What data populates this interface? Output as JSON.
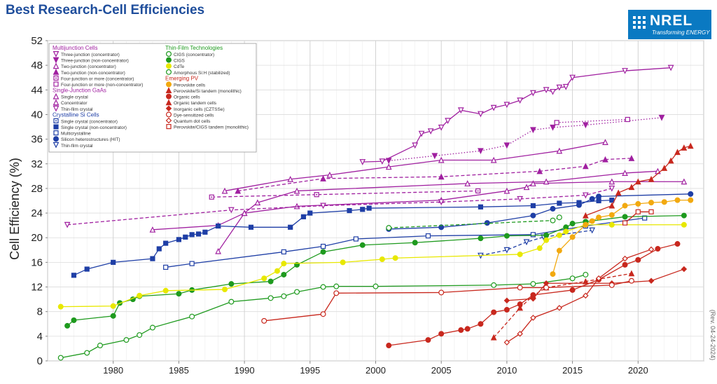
{
  "page": {
    "title": "Best Research-Cell Efficiencies",
    "logo_text": "NREL",
    "logo_tagline": "Transforming ENERGY",
    "revision": "(Rev. 04-24-2024)"
  },
  "chart_data": {
    "type": "line",
    "title": "Best Research-Cell Efficiencies",
    "xlabel": "",
    "ylabel": "Cell Efficiency (%)",
    "xlim": [
      1975,
      2025
    ],
    "ylim": [
      0,
      52
    ],
    "x_ticks": [
      1980,
      1985,
      1990,
      1995,
      2000,
      2005,
      2010,
      2015,
      2020
    ],
    "y_ticks": [
      0,
      4,
      8,
      12,
      16,
      20,
      24,
      28,
      32,
      36,
      40,
      44,
      48,
      52
    ],
    "grid": true,
    "legend_position": "top-left",
    "legend_groups": [
      {
        "title": "Multijunction Cells",
        "color": "#a020a0",
        "items": [
          {
            "label": "Three-junction (concentrator)",
            "color": "#a020a0",
            "marker": "tri-down-open"
          },
          {
            "label": "Three-junction (non-concentrator)",
            "color": "#a020a0",
            "marker": "tri-down"
          },
          {
            "label": "Two-junction (concentrator)",
            "color": "#a020a0",
            "marker": "tri-up-open"
          },
          {
            "label": "Two-junction (non-concentrator)",
            "color": "#a020a0",
            "marker": "tri-up"
          },
          {
            "label": "Four-junction or more (concentrator)",
            "color": "#a020a0",
            "marker": "square-dot"
          },
          {
            "label": "Four-junction or more (non-concentrator)",
            "color": "#a020a0",
            "marker": "square-open"
          }
        ]
      },
      {
        "title": "Single-Junction GaAs",
        "color": "#a020a0",
        "items": [
          {
            "label": "Single crystal",
            "color": "#a020a0",
            "marker": "tri-up-open"
          },
          {
            "label": "Concentrator",
            "color": "#a020a0",
            "marker": "tri-up-open"
          },
          {
            "label": "Thin-film crystal",
            "color": "#a020a0",
            "marker": "tri-down-open"
          }
        ]
      },
      {
        "title": "Crystalline Si Cells",
        "color": "#1f3fa6",
        "items": [
          {
            "label": "Single crystal (concentrator)",
            "color": "#1f3fa6",
            "marker": "square-dot"
          },
          {
            "label": "Single crystal (non-concentrator)",
            "color": "#1f3fa6",
            "marker": "square"
          },
          {
            "label": "Multicrystalline",
            "color": "#1f3fa6",
            "marker": "square-open"
          },
          {
            "label": "Silicon heterostructures (HIT)",
            "color": "#1f3fa6",
            "marker": "circle"
          },
          {
            "label": "Thin-film crystal",
            "color": "#1f3fa6",
            "marker": "tri-down-open"
          }
        ]
      },
      {
        "title": "Thin-Film Technologies",
        "color": "#1e9a1e",
        "items": [
          {
            "label": "CIGS (concentrator)",
            "color": "#1e9a1e",
            "marker": "circle-open"
          },
          {
            "label": "CIGS",
            "color": "#1e9a1e",
            "marker": "circle"
          },
          {
            "label": "CdTe",
            "color": "#e8e800",
            "marker": "circle"
          },
          {
            "label": "Amorphous Si:H (stabilized)",
            "color": "#1e9a1e",
            "marker": "circle-open"
          }
        ]
      },
      {
        "title": "Emerging PV",
        "color": "#c8281e",
        "items": [
          {
            "label": "Perovskite cells",
            "color": "#f2a90f",
            "marker": "circle"
          },
          {
            "label": "Perovskite/Si tandem (monolithic)",
            "color": "#c8281e",
            "marker": "tri-up"
          },
          {
            "label": "Organic cells",
            "color": "#c8281e",
            "marker": "circle"
          },
          {
            "label": "Organic tandem cells",
            "color": "#c8281e",
            "marker": "tri-up"
          },
          {
            "label": "Inorganic cells (CZTSSe)",
            "color": "#c8281e",
            "marker": "diamond"
          },
          {
            "label": "Dye-sensitized cells",
            "color": "#c8281e",
            "marker": "circle-open"
          },
          {
            "label": "Quantum dot cells",
            "color": "#c8281e",
            "marker": "diamond-open"
          },
          {
            "label": "Perovskite/CIGS tandem (monolithic)",
            "color": "#c8281e",
            "marker": "square-open"
          }
        ]
      }
    ],
    "series": [
      {
        "name": "Three-junction (concentrator)",
        "color": "#a020a0",
        "dash": "solid",
        "marker": "tri-down-open",
        "x": [
          1999,
          2000.5,
          2003,
          2003.5,
          2004.2,
          2005,
          2005.5,
          2006.5,
          2008,
          2009,
          2010,
          2011,
          2012,
          2013,
          2013.5,
          2014,
          2014.5,
          2015,
          2019,
          2022.5
        ],
        "y": [
          32.3,
          32.4,
          35,
          36.9,
          37.3,
          37.9,
          39,
          40.7,
          40.1,
          41.1,
          41.6,
          42.3,
          43.5,
          44,
          43.7,
          44.4,
          44.5,
          46,
          47.1,
          47.6
        ]
      },
      {
        "name": "Three-junction (non-concentrator)",
        "color": "#a020a0",
        "dash": "dotted",
        "marker": "tri-down",
        "x": [
          2001,
          2004.5,
          2008,
          2010,
          2012,
          2013.5,
          2016,
          2021.8
        ],
        "y": [
          32.5,
          33.3,
          34.1,
          35,
          37.5,
          37.9,
          38.3,
          39.5
        ]
      },
      {
        "name": "Two-junction (concentrator)",
        "color": "#a020a0",
        "dash": "solid",
        "marker": "tri-up-open",
        "x": [
          1988.5,
          1993.5,
          1996.5,
          2001,
          2005,
          2009,
          2014,
          2017.5
        ],
        "y": [
          27.6,
          29.5,
          30.2,
          31.5,
          32.6,
          32.6,
          34.1,
          35.5
        ]
      },
      {
        "name": "Two-junction (non-concentrator)",
        "color": "#a020a0",
        "dash": "dashed",
        "marker": "tri-up",
        "x": [
          1989.5,
          1996,
          2005,
          2012.5,
          2016,
          2017.5,
          2019.5
        ],
        "y": [
          27.6,
          29.6,
          29.9,
          30.8,
          31.6,
          32.7,
          32.9
        ]
      },
      {
        "name": "Single crystal",
        "color": "#a020a0",
        "dash": "solid",
        "marker": "tri-up-open",
        "x": [
          1983,
          1988,
          1990,
          1994,
          2005,
          2010,
          2011.5,
          2012,
          2018,
          2023.5
        ],
        "y": [
          21.3,
          22,
          24,
          25.1,
          26.1,
          27.6,
          28.2,
          28.8,
          29.1,
          29.1
        ]
      },
      {
        "name": "Concentrator",
        "color": "#a020a0",
        "dash": "solid",
        "marker": "tri-up-open",
        "x": [
          1988,
          1990,
          1991,
          1994,
          2007,
          2013,
          2019,
          2021.5
        ],
        "y": [
          17.8,
          24,
          25.7,
          27.6,
          28.8,
          29.1,
          30.5,
          30.8
        ]
      },
      {
        "name": "Thin-film crystal",
        "color": "#a020a0",
        "dash": "dashed",
        "marker": "tri-down-open",
        "x": [
          1976.5,
          1989,
          1996,
          2005,
          2011,
          2016,
          2018
        ],
        "y": [
          22.1,
          24.5,
          25.2,
          25.8,
          26.3,
          26.9,
          28
        ]
      },
      {
        "name": "Four-junction or more (concentrator)",
        "color": "#a020a0",
        "dash": "dashed",
        "marker": "square-dot",
        "x": [
          1987.5,
          1995.5,
          2007.8
        ],
        "y": [
          26.6,
          27,
          27.6
        ]
      },
      {
        "name": "Four-junction or more (non-concentrator)",
        "color": "#a020a0",
        "dash": "dotted",
        "marker": "square-open",
        "x": [
          2013.8,
          2019.2
        ],
        "y": [
          38.7,
          39.2
        ]
      },
      {
        "name": "Single crystal (non-concentrator)",
        "color": "#1f3fa6",
        "dash": "solid",
        "marker": "square",
        "x": [
          1977,
          1978,
          1980,
          1983,
          1983.5,
          1984,
          1985,
          1985.5,
          1986,
          1986.5,
          1987,
          1988,
          1990.5,
          1993.5,
          1994.5,
          1995,
          1998,
          1999,
          1999.5,
          2008,
          2012,
          2014,
          2015.5,
          2017,
          2018
        ],
        "y": [
          13.9,
          14.9,
          16,
          16.6,
          18.2,
          19.1,
          19.7,
          20.1,
          20.5,
          20.6,
          20.9,
          21.9,
          21.7,
          21.7,
          23.4,
          24,
          24.4,
          24.6,
          24.8,
          25,
          25.2,
          25.6,
          25.7,
          26,
          26.1
        ]
      },
      {
        "name": "Silicon heterostructures (HIT)",
        "color": "#1f3fa6",
        "dash": "solid",
        "marker": "circle",
        "x": [
          2001,
          2005,
          2008.5,
          2012,
          2013.5,
          2015.5,
          2016.5,
          2017,
          2024
        ],
        "y": [
          21.4,
          21.7,
          22.4,
          23.6,
          24.7,
          25.3,
          26.3,
          26.7,
          27.1
        ]
      },
      {
        "name": "Multicrystalline",
        "color": "#1f3fa6",
        "dash": "solid",
        "marker": "square-open",
        "x": [
          1984,
          1986,
          1993,
          1996,
          1998.5,
          2004,
          2012,
          2016,
          2020.5
        ],
        "y": [
          15.2,
          15.8,
          17.7,
          18.6,
          19.8,
          20.3,
          20.5,
          21.9,
          23.2
        ]
      },
      {
        "name": "Thin-film crystal (Si)",
        "color": "#1f3fa6",
        "dash": "dashed",
        "marker": "tri-down-open",
        "x": [
          2008,
          2010,
          2011.5,
          2012.8,
          2016.5
        ],
        "y": [
          17.1,
          18,
          19.3,
          20.1,
          21.2
        ]
      },
      {
        "name": "CIGS (concentrator)",
        "color": "#1e9a1e",
        "dash": "dashed",
        "marker": "circle-open",
        "x": [
          2001,
          2013.5,
          2014
        ],
        "y": [
          21.6,
          22.8,
          23.3
        ]
      },
      {
        "name": "CIGS",
        "color": "#1e9a1e",
        "dash": "solid",
        "marker": "circle",
        "x": [
          1976.5,
          1977,
          1980,
          1980.5,
          1981.5,
          1982,
          1985,
          1986,
          1989,
          1992,
          1993,
          1994,
          1996,
          1999,
          2003,
          2008,
          2010,
          2013,
          2014.5,
          2015,
          2016,
          2019,
          2023.5
        ],
        "y": [
          5.7,
          6.6,
          7.3,
          9.4,
          10,
          10.5,
          10.9,
          11.5,
          12.5,
          12.9,
          14,
          15.6,
          17.7,
          18.8,
          19.2,
          19.9,
          20.3,
          20.4,
          21.7,
          22.3,
          22.6,
          23.4,
          23.6
        ]
      },
      {
        "name": "CdTe",
        "color": "#e8e800",
        "dash": "solid",
        "marker": "circle",
        "x": [
          1976,
          1980,
          1982,
          1984,
          1988.5,
          1991.5,
          1992.5,
          1993,
          1997.5,
          2000.5,
          2001.5,
          2011,
          2012.5,
          2013,
          2014,
          2014.5,
          2016,
          2018,
          2023.5
        ],
        "y": [
          8.8,
          8.9,
          10.6,
          11.4,
          11.6,
          13.4,
          14.6,
          15.8,
          16,
          16.5,
          16.7,
          17.3,
          18.3,
          19.6,
          20.4,
          21,
          22.1,
          22.1,
          22.1
        ]
      },
      {
        "name": "Amorphous Si:H (stabilized)",
        "color": "#1e9a1e",
        "dash": "solid",
        "marker": "circle-open",
        "x": [
          1976,
          1978,
          1979,
          1981,
          1982,
          1983,
          1986,
          1989,
          1992,
          1993,
          1994,
          1996,
          1997,
          2000,
          2009,
          2012,
          2015,
          2016
        ],
        "y": [
          0.5,
          1.3,
          2.5,
          3.4,
          4.2,
          5.4,
          7.2,
          9.6,
          10.2,
          10.5,
          11.2,
          12,
          12.1,
          12.1,
          12.3,
          12.5,
          13.4,
          14
        ]
      },
      {
        "name": "Perovskite cells",
        "color": "#f2a90f",
        "dash": "solid",
        "marker": "circle",
        "x": [
          2013.5,
          2014,
          2015,
          2016,
          2016.5,
          2017,
          2018,
          2019,
          2020,
          2021,
          2022,
          2023,
          2024
        ],
        "y": [
          14.1,
          17.9,
          20.1,
          22.1,
          22.7,
          23.3,
          23.7,
          25.2,
          25.5,
          25.7,
          25.8,
          26.1,
          26.1
        ]
      },
      {
        "name": "Perovskite/Si tandem (monolithic)",
        "color": "#c8281e",
        "dash": "solid",
        "marker": "tri-up",
        "x": [
          2016,
          2018,
          2018.5,
          2019.5,
          2020,
          2021,
          2022,
          2022.5,
          2023,
          2023.5,
          2024
        ],
        "y": [
          23.6,
          25.2,
          27.3,
          28.2,
          29.1,
          29.5,
          31.3,
          32.5,
          33.9,
          34.6,
          34.9
        ]
      },
      {
        "name": "Organic cells",
        "color": "#c8281e",
        "dash": "solid",
        "marker": "circle",
        "x": [
          2001,
          2004,
          2005,
          2006.5,
          2007,
          2008,
          2009,
          2010,
          2011,
          2012,
          2015,
          2017,
          2019,
          2020,
          2021.5,
          2023
        ],
        "y": [
          2.5,
          3.4,
          4.4,
          5,
          5.2,
          6,
          7.9,
          8.3,
          9.2,
          10.7,
          11.5,
          13.2,
          15.6,
          16.4,
          18.2,
          19
        ]
      },
      {
        "name": "Organic tandem cells",
        "color": "#c8281e",
        "dash": "dashed",
        "marker": "tri-up",
        "x": [
          2009,
          2011,
          2012,
          2013,
          2016,
          2019.5
        ],
        "y": [
          3.8,
          8.6,
          10.6,
          11.9,
          12.9,
          14.2
        ]
      },
      {
        "name": "Inorganic cells (CZTSSe)",
        "color": "#c8281e",
        "dash": "solid",
        "marker": "diamond",
        "x": [
          2010,
          2012,
          2013,
          2018,
          2021,
          2023.5
        ],
        "y": [
          9.8,
          10.1,
          12.6,
          12.6,
          13.0,
          14.9
        ]
      },
      {
        "name": "Dye-sensitized cells",
        "color": "#c8281e",
        "dash": "solid",
        "marker": "circle-open",
        "x": [
          1991.5,
          1996,
          1997,
          2005,
          2011,
          2013,
          2018,
          2019.5
        ],
        "y": [
          6.5,
          7.6,
          11,
          11.1,
          11.9,
          11.9,
          12.3,
          13
        ]
      },
      {
        "name": "Quantum dot cells",
        "color": "#c8281e",
        "dash": "solid",
        "marker": "diamond-open",
        "x": [
          2010,
          2011,
          2012,
          2014,
          2016,
          2017,
          2019,
          2021
        ],
        "y": [
          3,
          4.4,
          7,
          8.6,
          10.6,
          13.4,
          16.6,
          18.1
        ]
      },
      {
        "name": "Perovskite/CIGS tandem (monolithic)",
        "color": "#c8281e",
        "dash": "solid",
        "marker": "square-open",
        "x": [
          2019,
          2020,
          2021
        ],
        "y": [
          22.4,
          24.2,
          24.2
        ]
      }
    ]
  }
}
